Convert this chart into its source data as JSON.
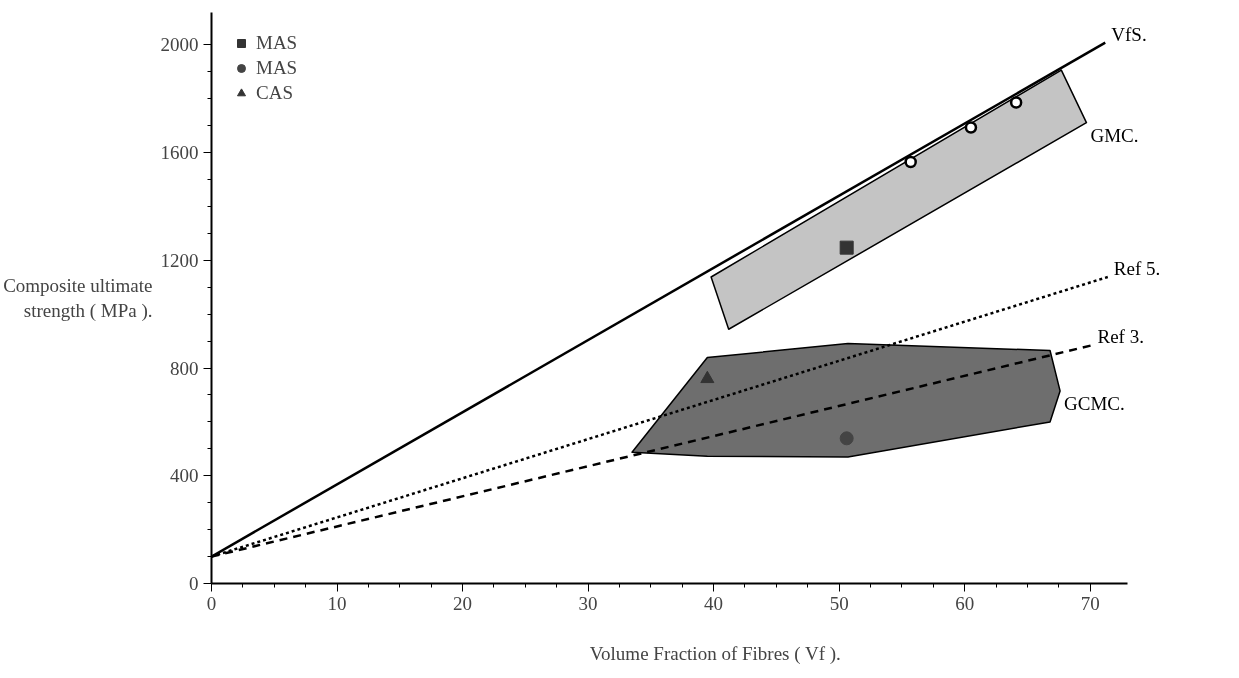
{
  "chart_data": {
    "type": "scatter",
    "xlabel": "Volume Fraction of Fibres ( Vf ).",
    "ylabel": "Composite ultimate\nstrength ( MPa ).",
    "xlim": [
      0,
      73
    ],
    "ylim": [
      0,
      2120
    ],
    "xticks": [
      0,
      10,
      20,
      30,
      40,
      50,
      60,
      70
    ],
    "yticks": [
      0,
      400,
      800,
      1200,
      1600,
      2000
    ],
    "grid": false,
    "legend": "top left",
    "series": [
      {
        "type": "area",
        "name": "GMC.",
        "color": "#c4c4c4",
        "x": [
          39.8,
          67.7,
          69.7,
          41.2
        ],
        "values": [
          1138,
          1906,
          1711,
          944
        ]
      },
      {
        "type": "area",
        "name": "GCMC.",
        "color": "#6e6e6e",
        "x": [
          33.5,
          39.5,
          50.7,
          66.8,
          67.6,
          66.8,
          50.7,
          39.5
        ],
        "values": [
          487,
          839,
          891,
          865,
          715,
          600,
          470,
          472
        ]
      },
      {
        "type": "line",
        "name": "VfS.",
        "color": "#000000",
        "line_style": "solid",
        "x": [
          0,
          71.2
        ],
        "values": [
          100,
          2008
        ]
      },
      {
        "type": "line",
        "name": "Ref 5.",
        "color": "#000000",
        "line_style": "dotted",
        "x": [
          0,
          71.4
        ],
        "values": [
          100,
          1138
        ]
      },
      {
        "type": "line",
        "name": "Ref 3.",
        "color": "#000000",
        "line_style": "dashed",
        "x": [
          0,
          70.1
        ],
        "values": [
          100,
          884
        ]
      },
      {
        "marker": "circle_open",
        "color": "#000000",
        "x": [
          55.7,
          60.5,
          64.1
        ],
        "values": [
          1565,
          1693,
          1786
        ]
      },
      {
        "name": "MAS",
        "marker": "square",
        "color": "#333333",
        "x": [
          50.6
        ],
        "values": [
          1247
        ]
      },
      {
        "name": "MAS",
        "marker": "circle",
        "color": "#444444",
        "x": [
          50.6
        ],
        "values": [
          539
        ]
      },
      {
        "name": "CAS",
        "marker": "triangle",
        "color": "#333333",
        "x": [
          39.5
        ],
        "values": [
          760
        ]
      }
    ]
  }
}
